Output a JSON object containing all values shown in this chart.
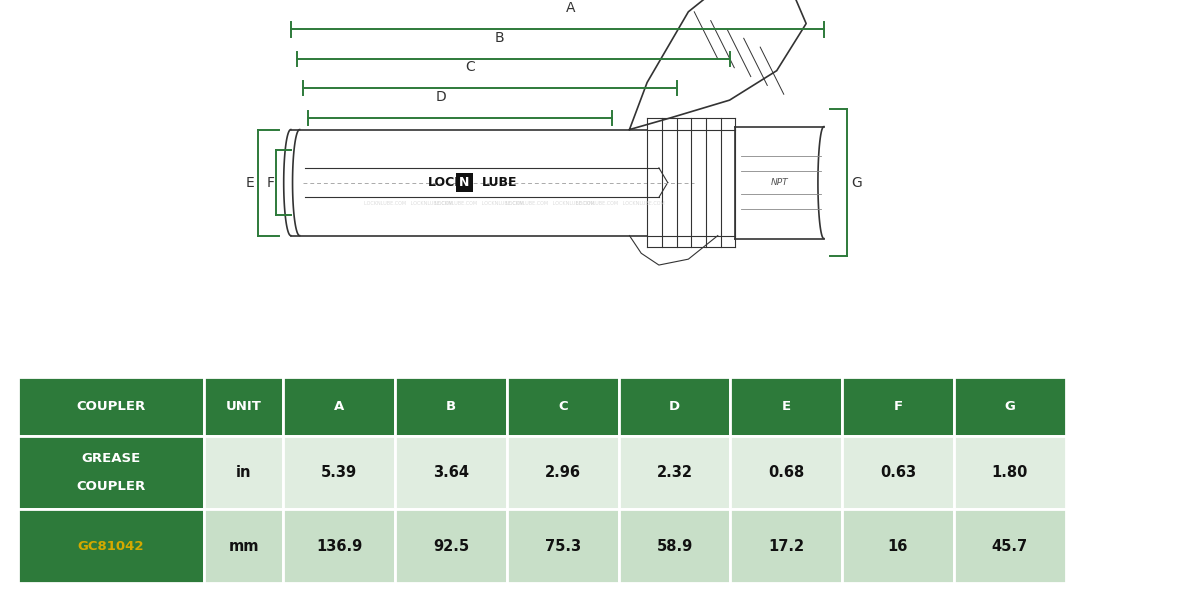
{
  "bg_color": "#ffffff",
  "dim_color": "#2d7a3a",
  "barrel_color": "#333333",
  "table": {
    "header_bg": "#2d7a3a",
    "header_text": "#ffffff",
    "col1_bg": "#2d7a3a",
    "col1_text": "#ffffff",
    "row1_bg": "#e0ede0",
    "row2_bg": "#c8dfc8",
    "data_text": "#111111",
    "columns": [
      "COUPLER",
      "UNIT",
      "A",
      "B",
      "C",
      "D",
      "E",
      "F",
      "G"
    ],
    "row1_vals": [
      "GREASE\nCOUPLER",
      "in",
      "5.39",
      "3.64",
      "2.96",
      "2.32",
      "0.68",
      "0.63",
      "1.80"
    ],
    "row2_vals": [
      "GC81042",
      "mm",
      "136.9",
      "92.5",
      "75.3",
      "58.9",
      "17.2",
      "16",
      "45.7"
    ],
    "product_color": "#d4a900",
    "product_code": "GC81042"
  }
}
